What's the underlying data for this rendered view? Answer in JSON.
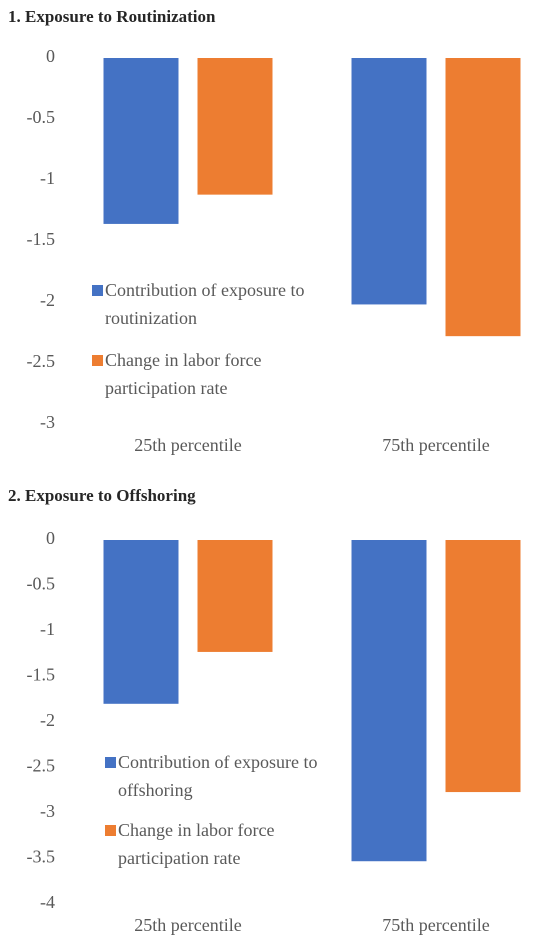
{
  "chart_data": [
    {
      "type": "bar",
      "title": "1. Exposure  to Routinization",
      "categories": [
        "25th percentile",
        "75th percentile"
      ],
      "series": [
        {
          "name": "Contribution of exposure to routinization",
          "color": "#4472c4",
          "values": [
            -1.36,
            -2.02
          ]
        },
        {
          "name": "Change in labor force participation rate",
          "color": "#ed7d31",
          "values": [
            -1.12,
            -2.28
          ]
        }
      ],
      "ylim": [
        -3,
        0
      ],
      "yticks": [
        0,
        -0.5,
        -1,
        -1.5,
        -2,
        -2.5,
        -3
      ],
      "grid": false,
      "legend": "left"
    },
    {
      "type": "bar",
      "title": "2. Exposure  to Offshoring",
      "categories": [
        "25th percentile",
        "75th percentile"
      ],
      "series": [
        {
          "name": "Contribution of exposure to offshoring",
          "color": "#4472c4",
          "values": [
            -1.8,
            -3.53
          ]
        },
        {
          "name": "Change in labor force participation rate",
          "color": "#ed7d31",
          "values": [
            -1.23,
            -2.77
          ]
        }
      ],
      "ylim": [
        -4,
        0
      ],
      "yticks": [
        0,
        -0.5,
        -1,
        -1.5,
        -2,
        -2.5,
        -3,
        -3.5,
        -4
      ],
      "grid": false,
      "legend": "left"
    }
  ]
}
